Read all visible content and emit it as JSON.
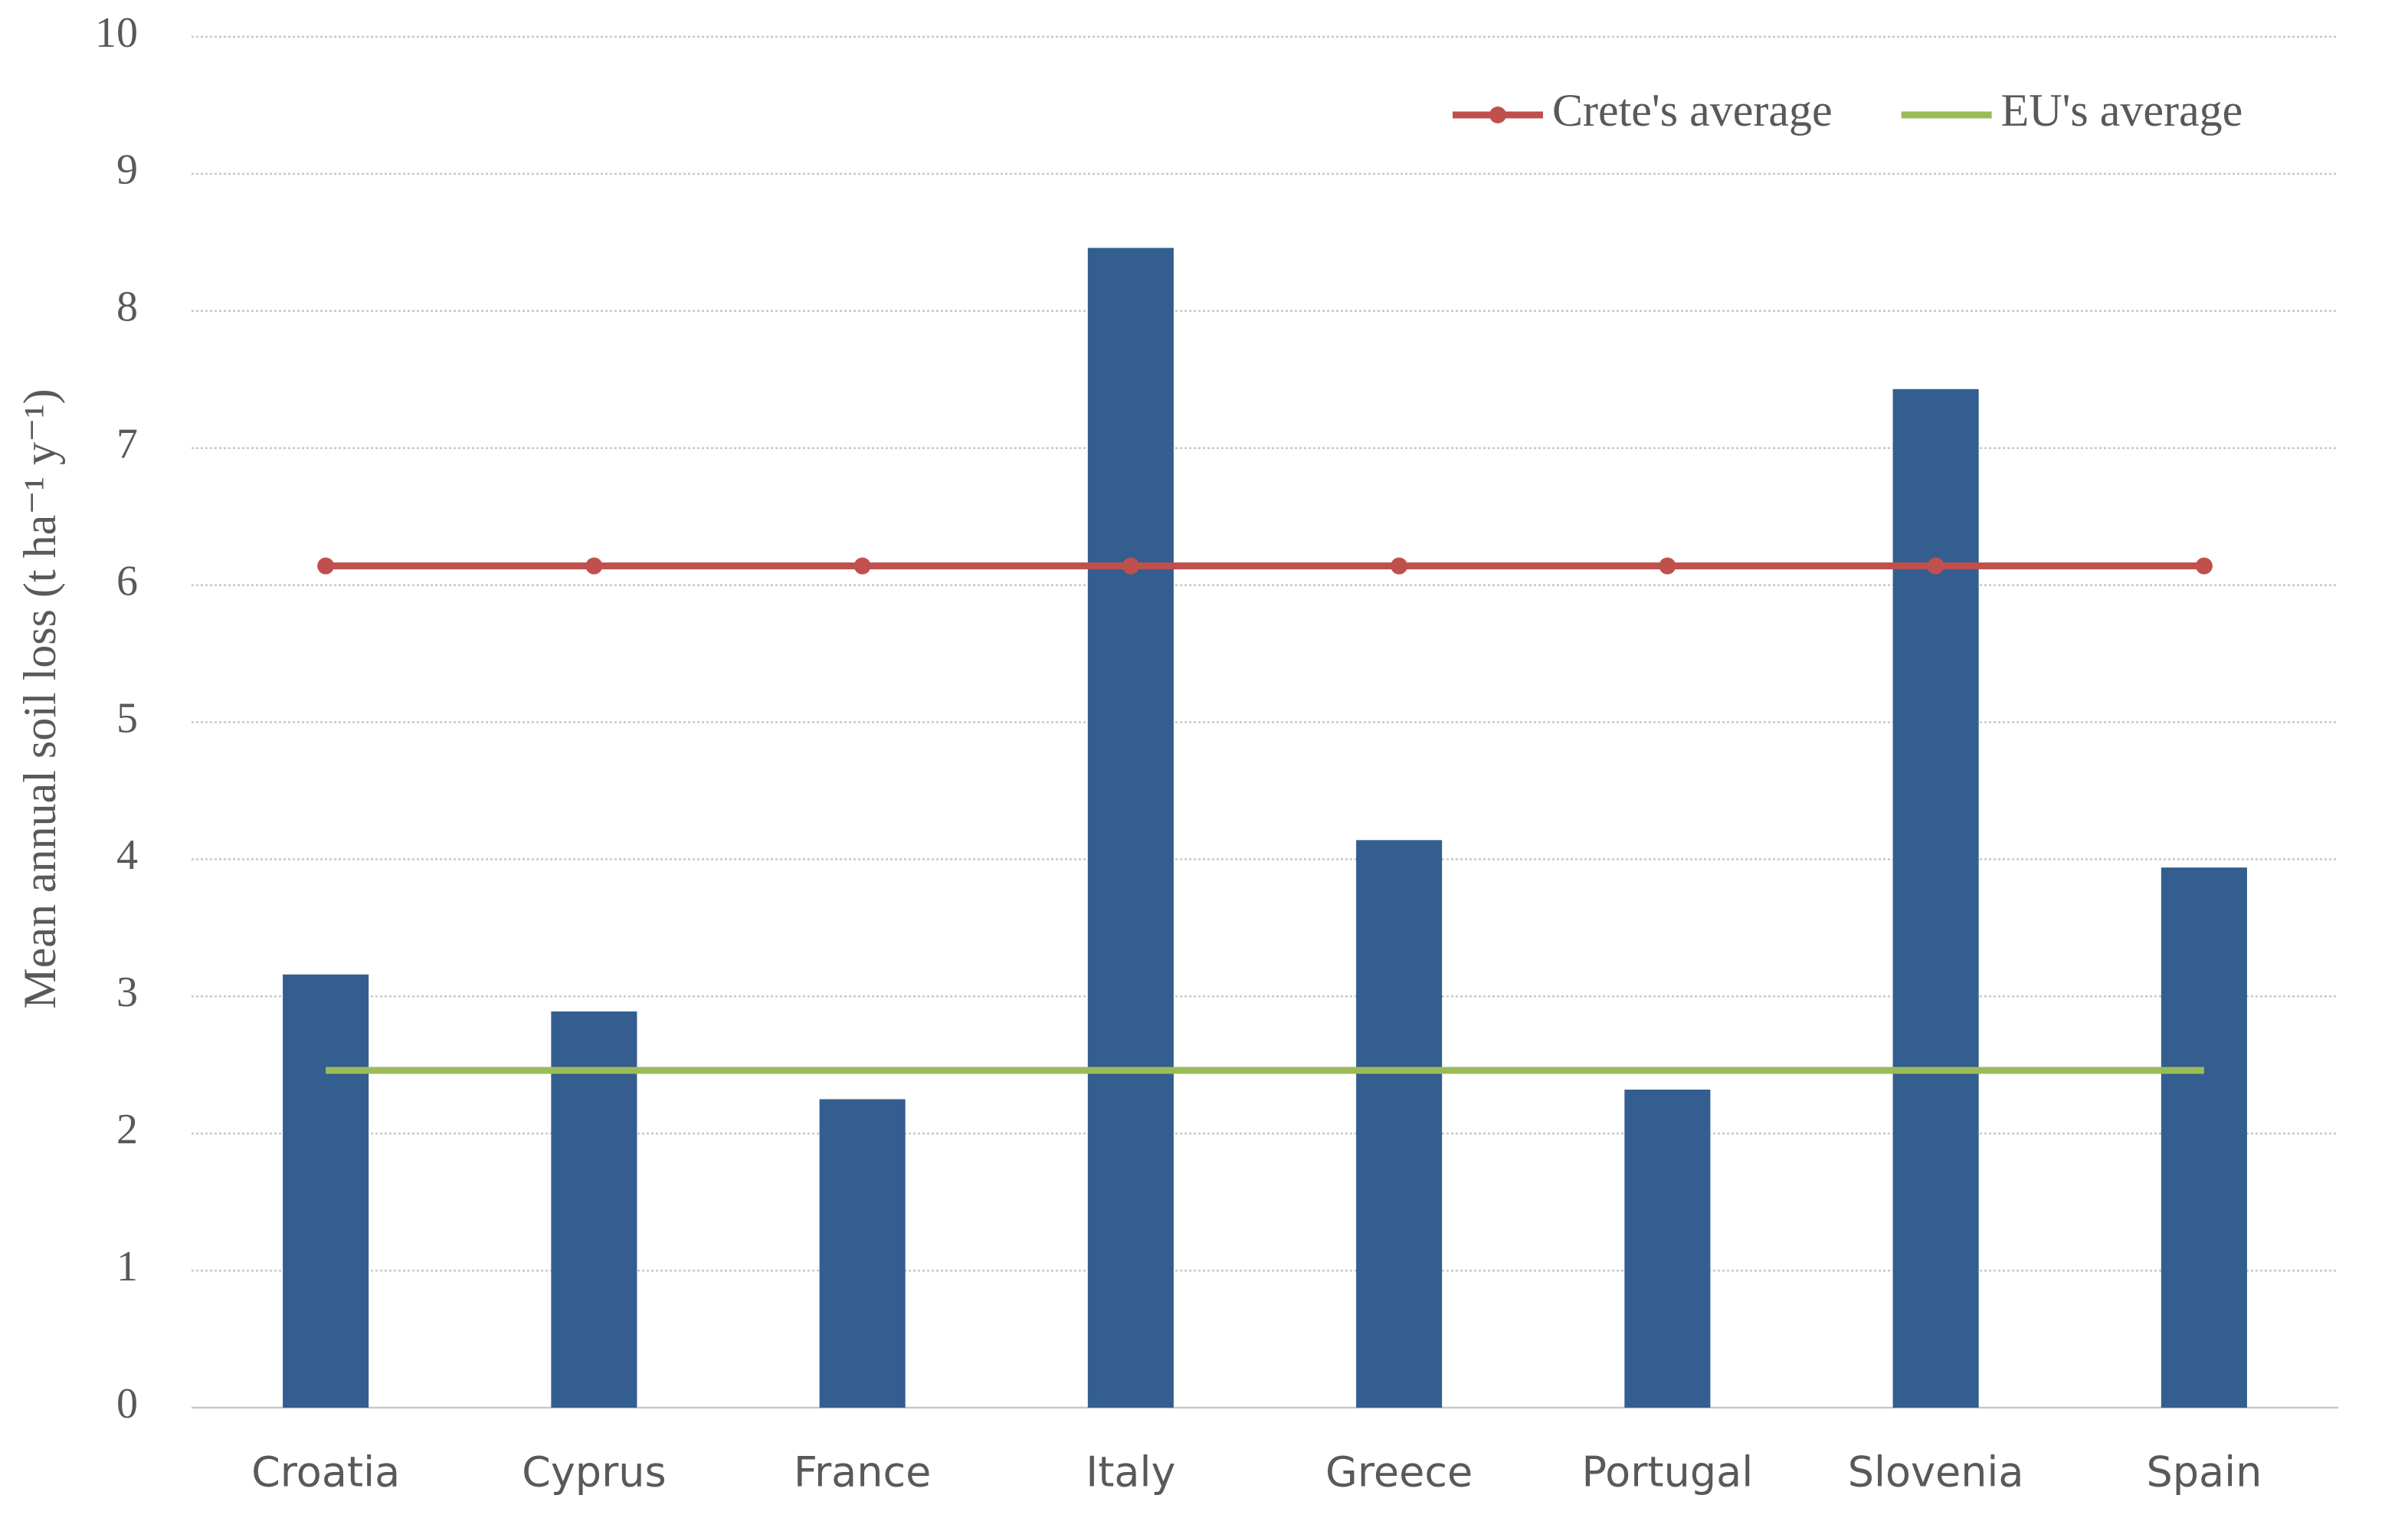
{
  "chart_data": {
    "type": "bar",
    "y_label": "Mean annual soil loss (t ha⁻¹ y⁻¹)",
    "categories": [
      "Croatia",
      "Cyprus",
      "France",
      "Italy",
      "Greece",
      "Portugal",
      "Slovenia",
      "Spain"
    ],
    "series": [
      {
        "type": "bar",
        "color": "#335e8f",
        "values": [
          3.16,
          2.89,
          2.25,
          8.46,
          4.14,
          2.32,
          7.43,
          3.94
        ]
      },
      {
        "type": "line",
        "name": "Crete's average",
        "color": "#c0504d",
        "marker": true,
        "values": [
          6.14,
          6.14,
          6.14,
          6.14,
          6.14,
          6.14,
          6.14,
          6.14
        ]
      },
      {
        "type": "line",
        "name": "EU's average",
        "color": "#9bbb59",
        "marker": false,
        "values": [
          2.46,
          2.46,
          2.46,
          2.46,
          2.46,
          2.46,
          2.46,
          2.46
        ]
      }
    ],
    "ylim": [
      0,
      10
    ],
    "yticks": [
      0,
      1,
      2,
      3,
      4,
      5,
      6,
      7,
      8,
      9,
      10
    ],
    "grid": true,
    "legend": "top-right"
  }
}
